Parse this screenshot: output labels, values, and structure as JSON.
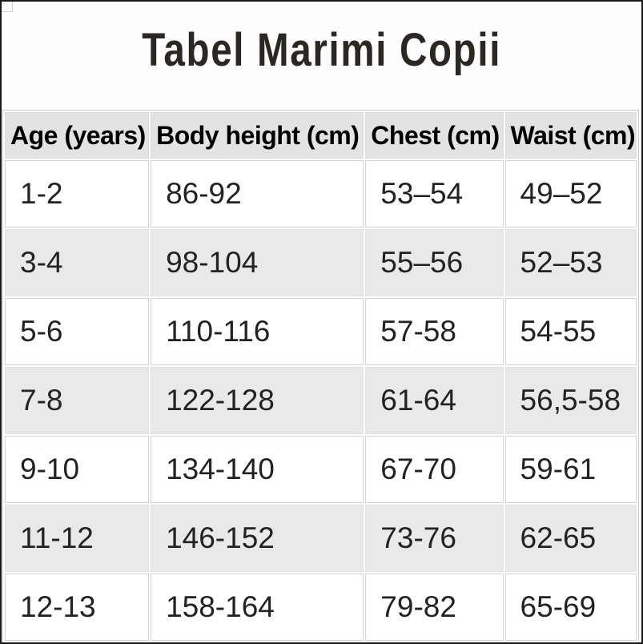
{
  "page": {
    "title": "Tabel Marimi Copii"
  },
  "table": {
    "headers": [
      "Age (years)",
      "Body height (cm)",
      "Chest (cm)",
      "Waist (cm)"
    ],
    "rows": [
      [
        "1-2",
        "86-92",
        "53–54",
        "49–52"
      ],
      [
        "3-4",
        "98-104",
        "55–56",
        "52–53"
      ],
      [
        "5-6",
        "110-116",
        "57-58",
        "54-55"
      ],
      [
        "7-8",
        "122-128",
        "61-64",
        "56,5-58"
      ],
      [
        "9-10",
        "134-140",
        "67-70",
        "59-61"
      ],
      [
        "11-12",
        "146-152",
        "73-76",
        "62-65"
      ],
      [
        "12-13",
        "158-164",
        "79-82",
        "65-69"
      ]
    ]
  },
  "colors": {
    "frame": "#1a1a1a",
    "header_bg": "#e3e3e3",
    "stripe_bg": "#e9e9e9",
    "cell_border": "#d4d4d4",
    "header_text": "#000000",
    "cell_text": "#222222",
    "title_text": "#2b2723",
    "table_border": "#c9c9c9",
    "page_bg": "#fdfdfd"
  }
}
